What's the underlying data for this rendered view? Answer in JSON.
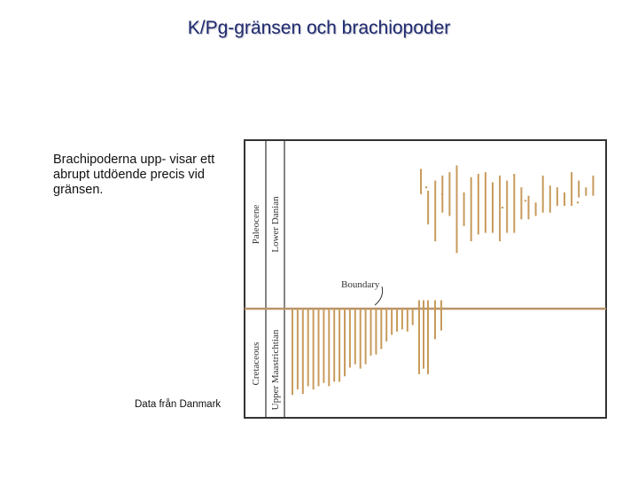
{
  "slide": {
    "title": "K/Pg-gränsen och brachiopoder",
    "caption": "Brachipoderna upp- visar ett abrupt utdöende precis vid gränsen.",
    "source_note": "Data från Danmark"
  },
  "chart_data": {
    "type": "range-chart",
    "title": "",
    "colors": {
      "bar": "#c89b5c",
      "boundary": "#b9936a",
      "frame": "#333333"
    },
    "period_labels": {
      "upper": "Paleocene",
      "lower": "Cretaceous"
    },
    "stage_labels": {
      "upper": "Lower Danian",
      "lower": "Upper Maastrichtian"
    },
    "boundary_label": "Boundary",
    "y_axis": {
      "range": [
        -1,
        1
      ],
      "boundary_at": 0,
      "note": "relative stratigraphic position; 0 = K/Pg boundary"
    },
    "cretaceous_ranges": [
      [
        -0.79,
        0
      ],
      [
        -0.74,
        0
      ],
      [
        -0.78,
        0
      ],
      [
        -0.71,
        0
      ],
      [
        -0.74,
        0
      ],
      [
        -0.71,
        0
      ],
      [
        -0.68,
        0
      ],
      [
        -0.71,
        0
      ],
      [
        -0.67,
        0
      ],
      [
        -0.67,
        0
      ],
      [
        -0.62,
        0
      ],
      [
        -0.54,
        0
      ],
      [
        -0.51,
        0
      ],
      [
        -0.55,
        0
      ],
      [
        -0.51,
        0
      ],
      [
        -0.43,
        0
      ],
      [
        -0.42,
        0
      ],
      [
        -0.37,
        0
      ],
      [
        -0.3,
        0
      ],
      [
        -0.24,
        0
      ],
      [
        -0.21,
        0
      ],
      [
        -0.19,
        0
      ],
      [
        -0.21,
        0
      ],
      [
        -0.15,
        0
      ]
    ],
    "crossing_ranges": [
      [
        -0.6,
        0.05
      ],
      [
        -0.55,
        0.05
      ],
      [
        -0.6,
        0.05
      ],
      [
        -0.28,
        0.05
      ],
      [
        -0.2,
        0.05
      ]
    ],
    "danian_ranges": [
      [
        0.68,
        0.83
      ],
      [
        0.5,
        0.7
      ],
      [
        0.4,
        0.76
      ],
      [
        0.57,
        0.79
      ],
      [
        0.55,
        0.81
      ],
      [
        0.33,
        0.85
      ],
      [
        0.49,
        0.69
      ],
      [
        0.4,
        0.78
      ],
      [
        0.44,
        0.8
      ],
      [
        0.45,
        0.81
      ],
      [
        0.45,
        0.75
      ],
      [
        0.4,
        0.79
      ],
      [
        0.45,
        0.76
      ],
      [
        0.45,
        0.8
      ],
      [
        0.53,
        0.72
      ],
      [
        0.53,
        0.67
      ],
      [
        0.55,
        0.63
      ],
      [
        0.57,
        0.79
      ],
      [
        0.57,
        0.73
      ],
      [
        0.61,
        0.72
      ],
      [
        0.61,
        0.69
      ],
      [
        0.61,
        0.81
      ],
      [
        0.66,
        0.76
      ],
      [
        0.67,
        0.72
      ],
      [
        0.67,
        0.79
      ]
    ],
    "danian_points": [
      0.72,
      0.68,
      0.6,
      0.64,
      0.63
    ]
  }
}
